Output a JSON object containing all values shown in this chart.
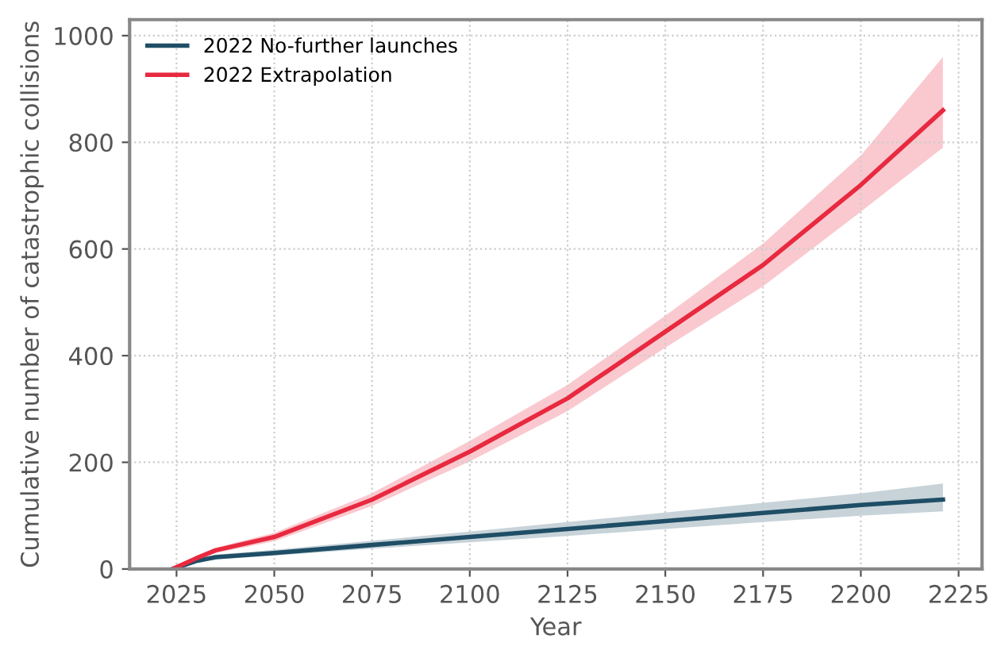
{
  "chart_data": {
    "type": "line",
    "xlabel": "Year",
    "ylabel": "Cumulative number of catastrophic collisions",
    "xlim": [
      2013,
      2231
    ],
    "ylim": [
      0,
      1030
    ],
    "xticks": [
      2025,
      2050,
      2075,
      2100,
      2125,
      2150,
      2175,
      2200,
      2225
    ],
    "yticks": [
      0,
      200,
      400,
      600,
      800,
      1000
    ],
    "grid": true,
    "legend": "top left",
    "series": [
      {
        "name": "2022 No-further launches",
        "color": "#1f4e66",
        "x": [
          2024,
          2030,
          2035,
          2050,
          2075,
          2100,
          2125,
          2150,
          2175,
          2200,
          2221
        ],
        "values": [
          0,
          15,
          22,
          30,
          45,
          60,
          75,
          90,
          105,
          120,
          130
        ],
        "lower": [
          0,
          12,
          18,
          25,
          38,
          50,
          62,
          75,
          88,
          100,
          108
        ],
        "upper": [
          0,
          18,
          27,
          36,
          53,
          70,
          88,
          106,
          124,
          142,
          160
        ]
      },
      {
        "name": "2022 Extrapolation",
        "color": "#e8293f",
        "x": [
          2024,
          2030,
          2035,
          2050,
          2075,
          2100,
          2125,
          2150,
          2175,
          2200,
          2221
        ],
        "values": [
          0,
          20,
          35,
          60,
          130,
          220,
          320,
          445,
          570,
          720,
          860
        ],
        "lower": [
          0,
          16,
          30,
          52,
          118,
          202,
          296,
          415,
          530,
          670,
          790
        ],
        "upper": [
          0,
          24,
          40,
          68,
          142,
          240,
          345,
          475,
          610,
          775,
          960
        ]
      }
    ]
  }
}
